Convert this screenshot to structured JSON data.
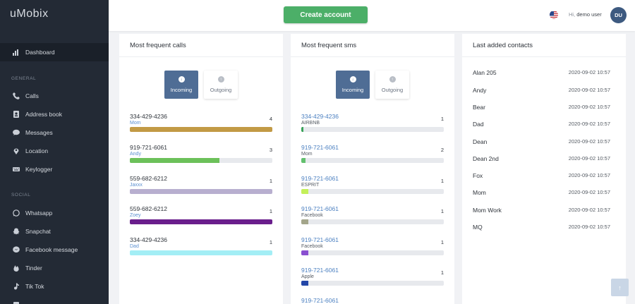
{
  "app": {
    "logo": "uMobix"
  },
  "sidebar": {
    "dashboard": "Dashboard",
    "general_label": "GENERAL",
    "general": [
      "Calls",
      "Address book",
      "Messages",
      "Location",
      "Keylogger"
    ],
    "social_label": "SOCIAL",
    "social": [
      "Whatsapp",
      "Snapchat",
      "Facebook message",
      "Tinder",
      "Tik Tok"
    ]
  },
  "header": {
    "create_account": "Create account",
    "greeting_prefix": "Hi,",
    "user_name": "demo user",
    "avatar_initials": "DU"
  },
  "calls": {
    "title": "Most frequent calls",
    "tab_incoming": "Incoming",
    "tab_outgoing": "Outgoing",
    "items": [
      {
        "number": "334-429-4236",
        "name": "Mom",
        "count": "4",
        "fill": 1.0,
        "color": "#c29a45"
      },
      {
        "number": "919-721-6061",
        "name": "Andy",
        "count": "3",
        "fill": 0.63,
        "color": "#6cc15a"
      },
      {
        "number": "559-682-6212",
        "name": "Jaxxx",
        "count": "1",
        "fill": 1.0,
        "color": "#b8afcf"
      },
      {
        "number": "559-682-6212",
        "name": "Zoey",
        "count": "1",
        "fill": 1.0,
        "color": "#6a1e8c"
      },
      {
        "number": "334-429-4236",
        "name": "Dad",
        "count": "1",
        "fill": 1.0,
        "color": "#a3eef5"
      }
    ]
  },
  "sms": {
    "title": "Most frequent sms",
    "tab_incoming": "Incoming",
    "tab_outgoing": "Outgoing",
    "items": [
      {
        "number": "334-429-4236",
        "name": "AIRBNB",
        "count": "1",
        "fill": 0.015,
        "color": "#3aa35a"
      },
      {
        "number": "919-721-6061",
        "name": "Mom",
        "count": "2",
        "fill": 0.03,
        "color": "#63c06e"
      },
      {
        "number": "919-721-6061",
        "name": "ESPRIT",
        "count": "1",
        "fill": 0.05,
        "color": "#c4f05a"
      },
      {
        "number": "919-721-6061",
        "name": "Facebook",
        "count": "1",
        "fill": 0.05,
        "color": "#a3a58a"
      },
      {
        "number": "919-721-6061",
        "name": "Facebook",
        "count": "1",
        "fill": 0.05,
        "color": "#8a4fd0"
      },
      {
        "number": "919-721-6061",
        "name": "Apple",
        "count": "1",
        "fill": 0.05,
        "color": "#2447a8"
      },
      {
        "number": "919-721-6061",
        "name": "",
        "count": "",
        "fill": 0,
        "color": "#2447a8"
      }
    ]
  },
  "contacts": {
    "title": "Last added contacts",
    "items": [
      {
        "name": "Alan 205",
        "date": "2020-09-02 10:57"
      },
      {
        "name": "Andy",
        "date": "2020-09-02 10:57"
      },
      {
        "name": "Bear",
        "date": "2020-09-02 10:57"
      },
      {
        "name": "Dad",
        "date": "2020-09-02 10:57"
      },
      {
        "name": "Dean",
        "date": "2020-09-02 10:57"
      },
      {
        "name": "Dean 2nd",
        "date": "2020-09-02 10:57"
      },
      {
        "name": "Fox",
        "date": "2020-09-02 10:57"
      },
      {
        "name": "Mom",
        "date": "2020-09-02 10:57"
      },
      {
        "name": "Mom Work",
        "date": "2020-09-02 10:57"
      },
      {
        "name": "MQ",
        "date": "2020-09-02 10:57"
      }
    ]
  }
}
